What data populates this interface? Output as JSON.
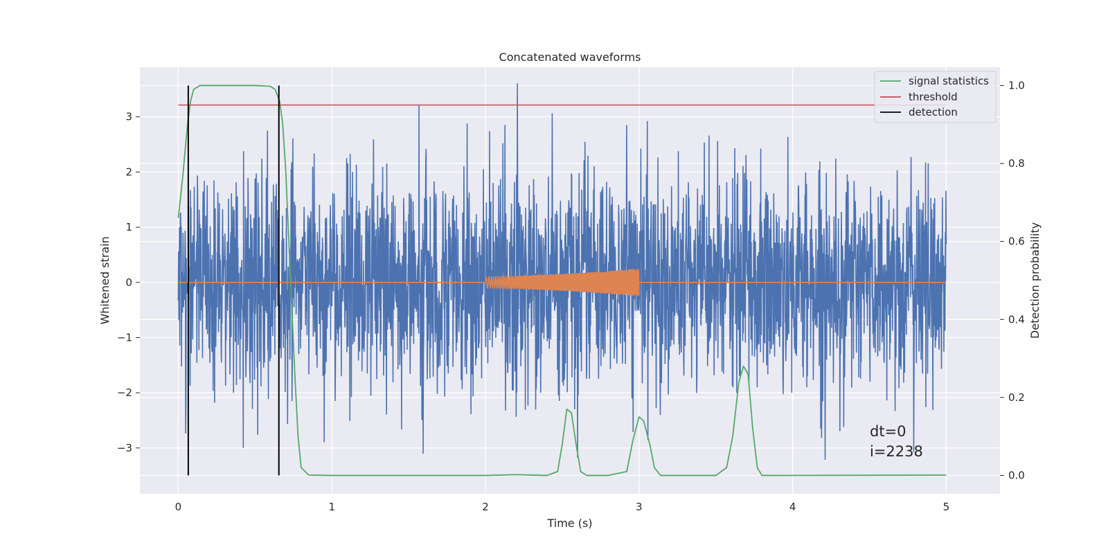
{
  "chart_data": {
    "type": "line",
    "title": "Concatenated waveforms",
    "xlabel": "Time (s)",
    "ylabel": "Whitened strain",
    "y2label": "Detection probability",
    "xlim": [
      -0.25,
      5.35
    ],
    "ylim": [
      -3.83,
      3.9
    ],
    "y2lim": [
      -0.047,
      1.047
    ],
    "xticks": [
      "0",
      "1",
      "2",
      "3",
      "4",
      "5"
    ],
    "yticks": [
      "3",
      "2",
      "1",
      "0",
      "−1",
      "−2",
      "−3"
    ],
    "y2ticks": [
      "1.0",
      "0.8",
      "0.6",
      "0.4",
      "0.2",
      "0.0"
    ],
    "grid": true,
    "legend_position": "top-right",
    "series": [
      {
        "name": "",
        "color": "#4c72b0",
        "kind": "noise",
        "x_range": [
          0,
          5
        ],
        "amplitude_envelope": [
          -3.6,
          3.6
        ]
      },
      {
        "name": "",
        "color": "#dd8452",
        "kind": "chirp",
        "x": [
          0,
          2,
          3,
          5
        ],
        "y_on_zero": 0,
        "chirp_range": [
          2,
          3
        ],
        "chirp_amplitude": [
          0.1,
          0.25
        ]
      },
      {
        "name": "signal statistics",
        "color": "#55a868",
        "axis": "right",
        "x": [
          0,
          0.03,
          0.06,
          0.08,
          0.1,
          0.14,
          0.2,
          0.3,
          0.5,
          0.6,
          0.63,
          0.66,
          0.68,
          0.7,
          0.72,
          0.74,
          0.76,
          0.78,
          0.8,
          0.85,
          1.0,
          2.0,
          2.2,
          2.4,
          2.47,
          2.5,
          2.53,
          2.56,
          2.59,
          2.62,
          2.66,
          2.8,
          2.92,
          2.96,
          3.0,
          3.03,
          3.07,
          3.1,
          3.14,
          3.5,
          3.57,
          3.61,
          3.65,
          3.68,
          3.71,
          3.74,
          3.77,
          3.8,
          3.85,
          5.0
        ],
        "y": [
          0.66,
          0.77,
          0.9,
          0.96,
          0.99,
          1.0,
          1.0,
          1.0,
          1.0,
          0.998,
          0.99,
          0.96,
          0.9,
          0.78,
          0.6,
          0.42,
          0.25,
          0.1,
          0.02,
          0.001,
          0.0,
          0.0,
          0.002,
          0.0,
          0.01,
          0.08,
          0.17,
          0.16,
          0.08,
          0.01,
          0.0,
          0.0,
          0.01,
          0.09,
          0.15,
          0.14,
          0.08,
          0.02,
          0.0,
          0.0,
          0.02,
          0.1,
          0.24,
          0.28,
          0.26,
          0.12,
          0.02,
          0.0,
          0.0,
          0.001
        ]
      },
      {
        "name": "threshold",
        "color": "#c44e52",
        "axis": "right",
        "x": [
          0,
          5
        ],
        "y": [
          0.95,
          0.95
        ]
      },
      {
        "name": "detection",
        "color": "#000000",
        "axis": "right",
        "kind": "vlines",
        "x": [
          0.065,
          0.655
        ],
        "y": [
          0,
          1
        ]
      }
    ],
    "annotations": [
      {
        "text": "dt=0",
        "x": 4.5,
        "y": -2.78
      },
      {
        "text": "i=2238",
        "x": 4.5,
        "y": -3.11
      }
    ]
  }
}
